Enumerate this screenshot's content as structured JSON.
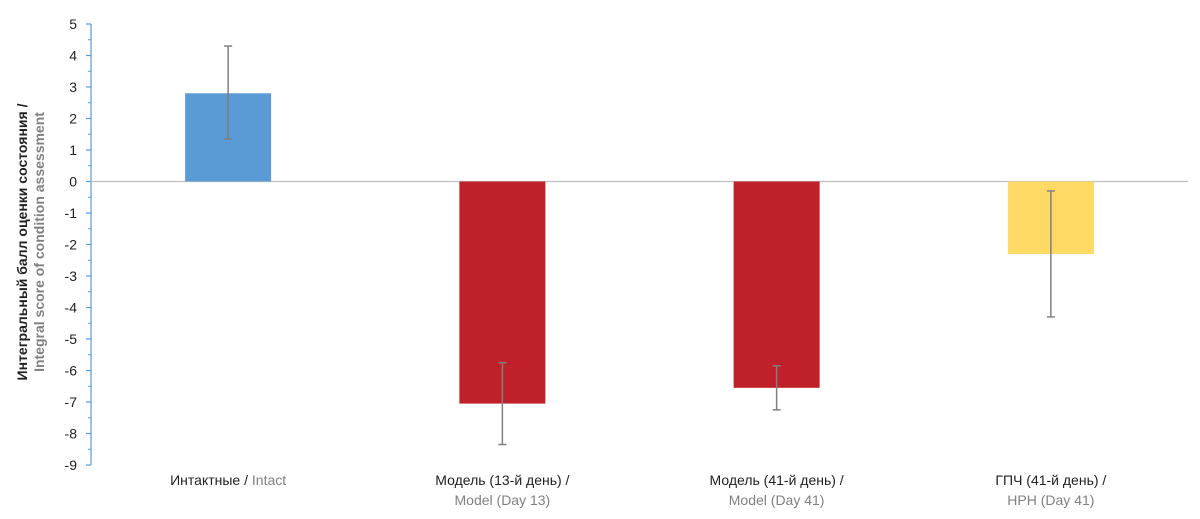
{
  "chart_data": {
    "type": "bar",
    "ylabel_ru": "Интегральный балл оценки состояния /",
    "ylabel_en": "Integral score of condition assessment",
    "ylim": [
      -9,
      5
    ],
    "yticks": [
      "5",
      "4",
      "3",
      "2",
      "1",
      "0",
      "-1",
      "-2",
      "-3",
      "-4",
      "-5",
      "-6",
      "-7",
      "-8",
      "-9"
    ],
    "categories": [
      {
        "ru": "Интактные",
        "sep": " / ",
        "en": "Intact",
        "value": 2.8,
        "err_low": 1.35,
        "err_high": 4.3,
        "color": "#5B9BD5"
      },
      {
        "ru": "Модель (13-й день) /",
        "sep": "",
        "en": "Model (Day 13)",
        "value": -7.05,
        "err_low": -8.35,
        "err_high": -5.75,
        "color": "#C0202A"
      },
      {
        "ru": "Модель (41-й день) /",
        "sep": "",
        "en": "Model (Day 41)",
        "value": -6.55,
        "err_low": -7.25,
        "err_high": -5.85,
        "color": "#C0202A"
      },
      {
        "ru": "ГПЧ (41-й день) /",
        "sep": "",
        "en": "HPH (Day 41)",
        "value": -2.3,
        "err_low": -4.3,
        "err_high": -0.3,
        "color": "#FFD966"
      }
    ],
    "axis_color": "#5B9BD5",
    "zero_line_color": "#BFBFBF",
    "error_bar_color": "#7F7F7F"
  }
}
